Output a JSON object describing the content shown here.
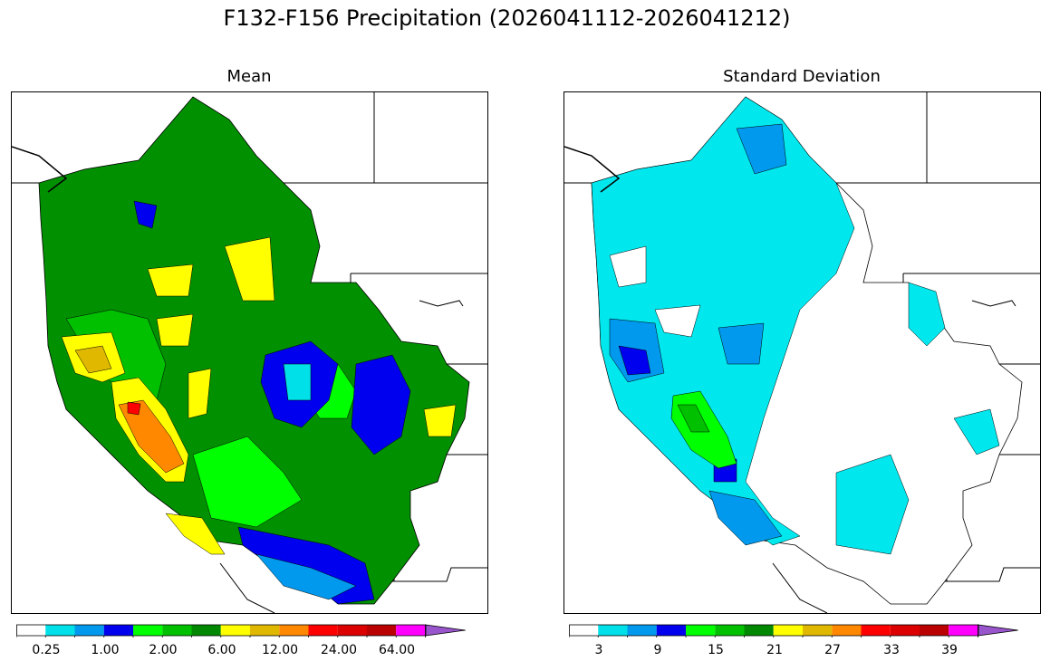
{
  "figure": {
    "title": "F132-F156 Precipitation (2026041112-2026041212)"
  },
  "panels": [
    {
      "title": "Mean",
      "colorbar": {
        "colors": [
          "#ffffff",
          "#00e0e8",
          "#0099ee",
          "#0000ee",
          "#00ff00",
          "#00c000",
          "#008800",
          "#ffff00",
          "#e0b800",
          "#ff8800",
          "#ff0000",
          "#dd0000",
          "#bb0000",
          "#ff00ff",
          "#9955cc"
        ],
        "tick_labels": [
          "0.25",
          "1.00",
          "2.00",
          "6.00",
          "12.00",
          "24.00",
          "64.00"
        ],
        "extend": "max"
      }
    },
    {
      "title": "Standard Deviation",
      "colorbar": {
        "colors": [
          "#ffffff",
          "#00e0e8",
          "#0099ee",
          "#0000ee",
          "#00ff00",
          "#00c000",
          "#008800",
          "#ffff00",
          "#e0b800",
          "#ff8800",
          "#ff0000",
          "#dd0000",
          "#bb0000",
          "#ff00ff",
          "#9955cc"
        ],
        "tick_labels": [
          "3",
          "9",
          "15",
          "21",
          "27",
          "33",
          "39"
        ],
        "extend": "max"
      }
    }
  ]
}
